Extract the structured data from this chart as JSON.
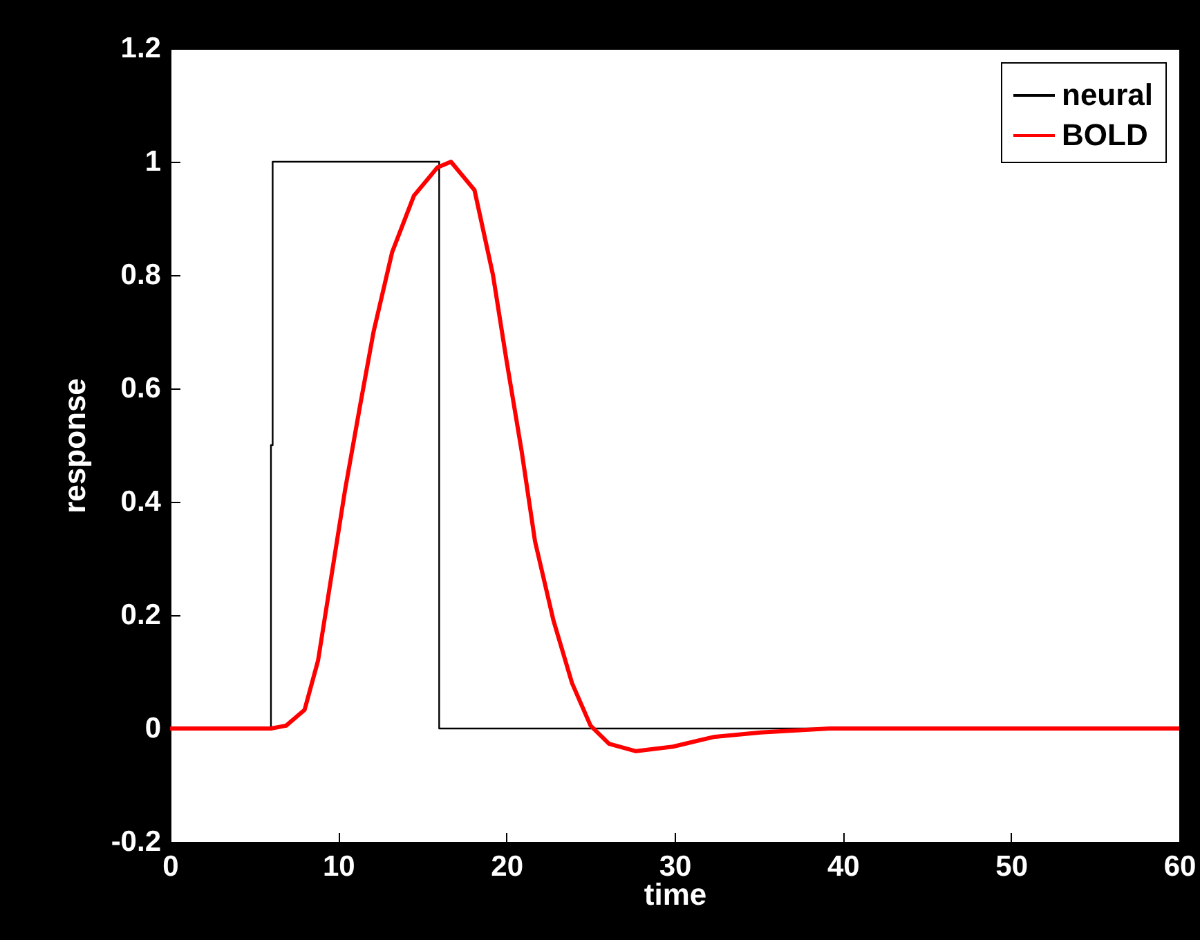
{
  "chart_data": {
    "type": "line",
    "xlabel": "time",
    "ylabel": "response",
    "xlim": [
      0,
      60
    ],
    "ylim": [
      -0.2,
      1.2
    ],
    "xticks": [
      0,
      10,
      20,
      30,
      40,
      50,
      60
    ],
    "yticks": [
      -0.2,
      0,
      0.2,
      0.4,
      0.6,
      0.8,
      1,
      1.2
    ],
    "legend": "top right",
    "series": [
      {
        "name": "neural",
        "color": "#000000",
        "x": [
          0,
          6,
          6,
          6.1,
          6.1,
          16,
          16,
          60
        ],
        "values": [
          0,
          0,
          0.5,
          0.5,
          1,
          1,
          0,
          0
        ]
      },
      {
        "name": "BOLD",
        "color": "#ff0000",
        "x": [
          0,
          6,
          6.9,
          8,
          8.8,
          9.6,
          10.4,
          11.3,
          12.1,
          13.2,
          14.5,
          15.9,
          16.7,
          18.1,
          19.2,
          20,
          20.9,
          21.7,
          22.8,
          23.9,
          25,
          26.1,
          27.7,
          29.9,
          32.3,
          35.1,
          39.2,
          60
        ],
        "values": [
          0,
          0,
          0.005,
          0.033,
          0.12,
          0.27,
          0.42,
          0.57,
          0.7,
          0.84,
          0.94,
          0.99,
          1,
          0.95,
          0.8,
          0.65,
          0.49,
          0.33,
          0.19,
          0.08,
          0.005,
          -0.027,
          -0.04,
          -0.032,
          -0.015,
          -0.007,
          0,
          0
        ]
      }
    ]
  }
}
